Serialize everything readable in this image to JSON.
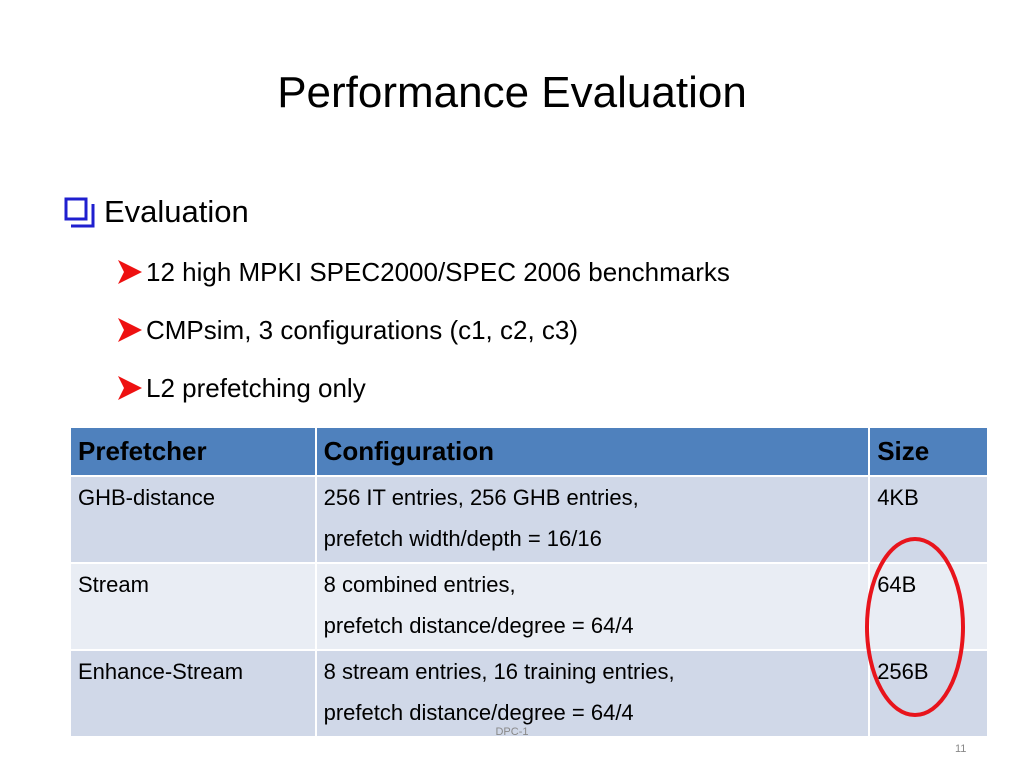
{
  "title": "Performance Evaluation",
  "bullets": [
    {
      "text": "Evaluation",
      "subitems": [
        "12 high MPKI SPEC2000/SPEC 2006 benchmarks",
        "CMPsim, 3 configurations (c1, c2, c3)",
        "L2 prefetching only"
      ]
    }
  ],
  "table": {
    "header": [
      "Prefetcher",
      "Configuration",
      "Size"
    ],
    "rows": [
      [
        [
          "GHB-distance"
        ],
        [
          "256 IT entries, 256 GHB entries,",
          "prefetch width/depth = 16/16"
        ],
        [
          "4KB"
        ]
      ],
      [
        [
          "Stream"
        ],
        [
          "8 combined entries,",
          "prefetch distance/degree = 64/4"
        ],
        [
          "64B"
        ]
      ],
      [
        [
          "Enhance-Stream"
        ],
        [
          "8 stream entries, 16 training entries,",
          "prefetch distance/degree = 64/4"
        ],
        [
          "256B"
        ]
      ]
    ]
  },
  "footer": "DPC-1",
  "page_number": "11"
}
